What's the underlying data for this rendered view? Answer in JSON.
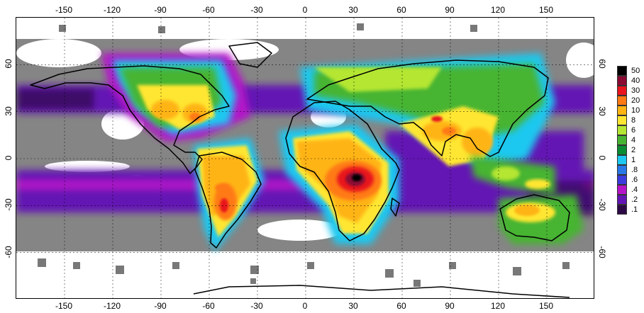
{
  "map": {
    "lon_ticks": [
      "-150",
      "-120",
      "-90",
      "-60",
      "-30",
      "0",
      "30",
      "60",
      "90",
      "120",
      "150"
    ],
    "lat_ticks": [
      "60",
      "30",
      "0",
      "-30",
      "-60"
    ],
    "lon_values": [
      -150,
      -120,
      -90,
      -60,
      -30,
      0,
      30,
      60,
      90,
      120,
      150
    ],
    "lat_values": [
      60,
      30,
      0,
      -30,
      -60
    ],
    "lon_range": [
      -180,
      180
    ],
    "lat_range": [
      -90,
      90
    ],
    "gridlines": "dashed"
  },
  "legend": {
    "items": [
      {
        "label": "50",
        "color": "#000000"
      },
      {
        "label": "40",
        "color": "#8b0a34"
      },
      {
        "label": "30",
        "color": "#e8141e"
      },
      {
        "label": "20",
        "color": "#ff7a14"
      },
      {
        "label": "10",
        "color": "#ffb414"
      },
      {
        "label": "8",
        "color": "#ffe632"
      },
      {
        "label": "6",
        "color": "#b4e632"
      },
      {
        "label": "4",
        "color": "#46b432"
      },
      {
        "label": "2",
        "color": "#0a8c32"
      },
      {
        "label": "1",
        "color": "#1ec8f0"
      },
      {
        "label": ".8",
        "color": "#2878e6"
      },
      {
        "label": ".6",
        "color": "#3c3cdc"
      },
      {
        "label": ".4",
        "color": "#b414c8"
      },
      {
        "label": ".2",
        "color": "#6414b4"
      },
      {
        "label": ".1",
        "color": "#2d0a46"
      }
    ]
  },
  "colors": {
    "very_low": "#787878",
    "background": "#ffffff",
    "coast": "#000000"
  }
}
